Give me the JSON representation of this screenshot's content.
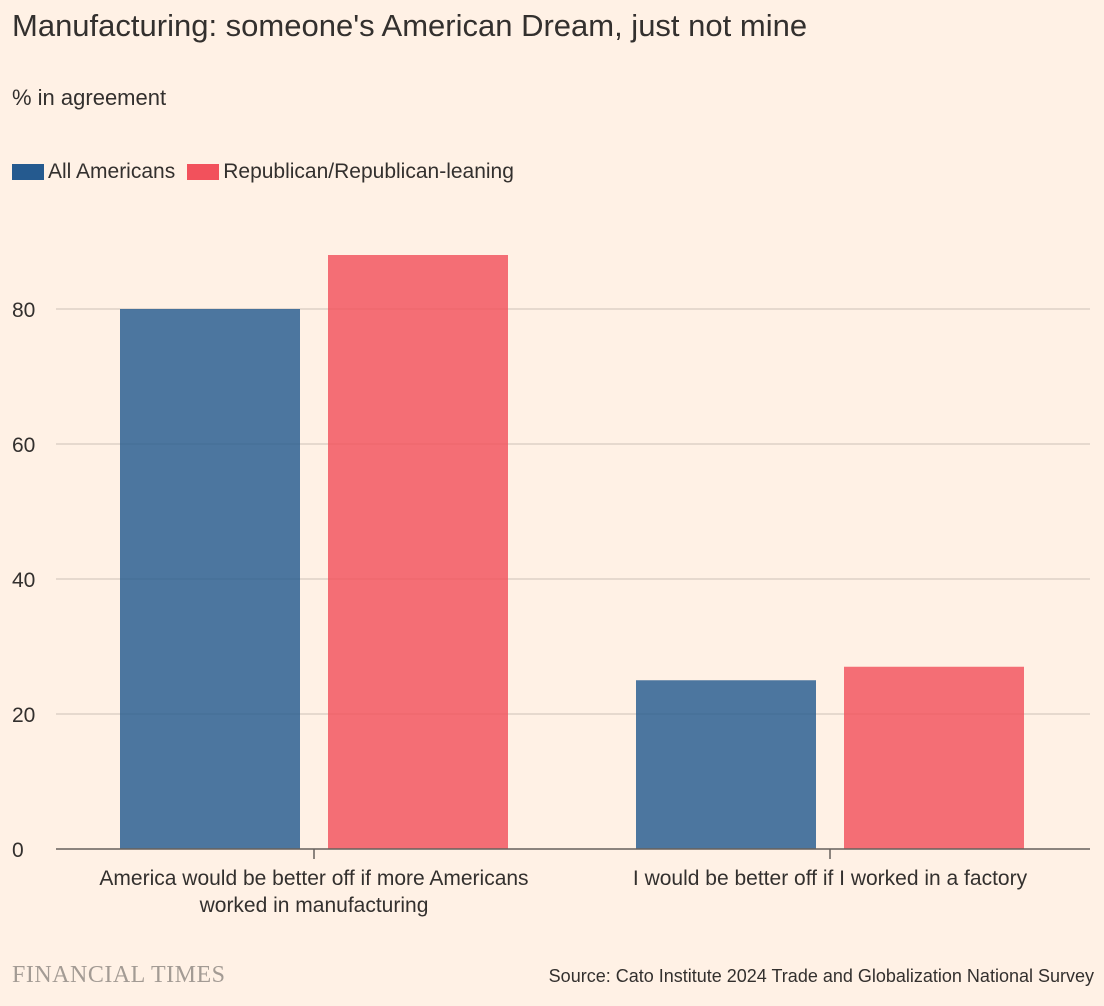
{
  "header": {
    "title": "Manufacturing: someone's American Dream, just not mine",
    "subtitle": "% in agreement"
  },
  "legend": {
    "items": [
      {
        "label": "All Americans",
        "color": "#255a8f"
      },
      {
        "label": "Republican/Republican-leaning",
        "color": "#f2515c"
      }
    ]
  },
  "footer": {
    "brand": "FINANCIAL TIMES",
    "source": "Source: Cato Institute 2024 Trade and Globalization National Survey"
  },
  "chart_data": {
    "type": "bar",
    "categories": [
      "America would be better off if more Americans worked in manufacturing",
      "I would be better off if I worked in a factory"
    ],
    "category_lines": [
      [
        "America would be better off if more Americans",
        "worked in manufacturing"
      ],
      [
        "I would be better off if I worked in a factory"
      ]
    ],
    "series": [
      {
        "name": "All Americans",
        "values": [
          80,
          25
        ],
        "color": "#255a8f"
      },
      {
        "name": "Republican/Republican-leaning",
        "values": [
          88,
          27
        ],
        "color": "#f2515c"
      }
    ],
    "title": "Manufacturing: someone's American Dream, just not mine",
    "subtitle": "% in agreement",
    "ylim": [
      0,
      90
    ],
    "yticks": [
      0,
      20,
      40,
      60,
      80
    ],
    "grid": true,
    "legend_position": "top-left"
  }
}
